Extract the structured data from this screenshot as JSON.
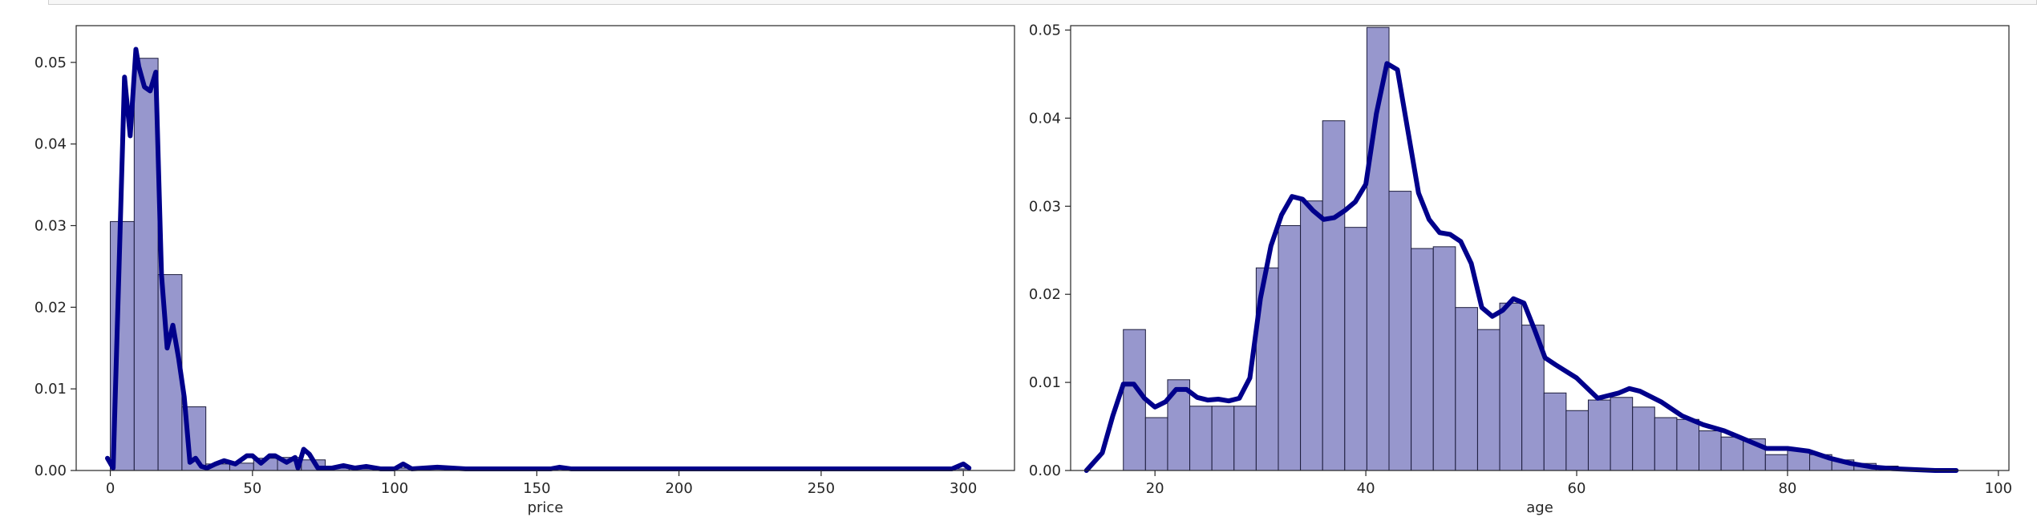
{
  "colors": {
    "bar_fill": "#8c8cc8",
    "bar_edge": "#1c1c3c",
    "kde": "#00008b",
    "axes": "#262626"
  },
  "chart_data": [
    {
      "type": "histogram",
      "xlabel": "price",
      "ylabel": "",
      "xlim": [
        -12,
        318
      ],
      "ylim": [
        0,
        0.0545
      ],
      "x_ticks": [
        0,
        50,
        100,
        150,
        200,
        250,
        300
      ],
      "x_tick_labels": [
        "0",
        "50",
        "100",
        "150",
        "200",
        "250",
        "300"
      ],
      "y_ticks": [
        0,
        0.01,
        0.02,
        0.03,
        0.04,
        0.05
      ],
      "y_tick_labels": [
        "0.00",
        "0.01",
        "0.02",
        "0.03",
        "0.04",
        "0.05"
      ],
      "bins": [
        {
          "x0": 0,
          "x1": 8.4,
          "density": 0.0305
        },
        {
          "x0": 8.4,
          "x1": 16.8,
          "density": 0.0505
        },
        {
          "x0": 16.8,
          "x1": 25.2,
          "density": 0.024
        },
        {
          "x0": 25.2,
          "x1": 33.6,
          "density": 0.0078
        },
        {
          "x0": 33.6,
          "x1": 42.0,
          "density": 0.0008
        },
        {
          "x0": 42.0,
          "x1": 50.4,
          "density": 0.0009
        },
        {
          "x0": 50.4,
          "x1": 58.8,
          "density": 0.0015
        },
        {
          "x0": 58.8,
          "x1": 67.2,
          "density": 0.0016
        },
        {
          "x0": 67.2,
          "x1": 75.6,
          "density": 0.0013
        },
        {
          "x0": 75.6,
          "x1": 84.0,
          "density": 0.0004
        },
        {
          "x0": 84.0,
          "x1": 92.4,
          "density": 0.0002
        },
        {
          "x0": 92.4,
          "x1": 100.8,
          "density": 0.0002
        },
        {
          "x0": 100.8,
          "x1": 109.2,
          "density": 0.0003
        },
        {
          "x0": 109.2,
          "x1": 117.6,
          "density": 0.0002
        },
        {
          "x0": 117.6,
          "x1": 126.0,
          "density": 0.0001
        },
        {
          "x0": 151.2,
          "x1": 159.6,
          "density": 0.0002
        },
        {
          "x0": 294.0,
          "x1": 302.4,
          "density": 0.0002
        }
      ],
      "kde": {
        "x": [
          -1,
          1,
          3,
          5,
          7,
          9,
          10,
          12,
          14,
          16,
          18,
          20,
          22,
          24,
          26,
          28,
          30,
          32,
          34,
          37,
          40,
          44,
          48,
          50,
          53,
          56,
          58,
          62,
          65,
          66,
          68,
          70,
          73,
          78,
          82,
          86,
          90,
          95,
          100,
          103,
          106,
          115,
          125,
          140,
          155,
          158,
          162,
          175,
          200,
          230,
          260,
          280,
          296,
          300,
          302
        ],
        "y": [
          0.0015,
          0.0003,
          0.024,
          0.0482,
          0.041,
          0.0516,
          0.0495,
          0.047,
          0.0465,
          0.0488,
          0.024,
          0.015,
          0.0178,
          0.0138,
          0.009,
          0.001,
          0.0015,
          0.0005,
          0.0003,
          0.0008,
          0.0012,
          0.0008,
          0.0018,
          0.0018,
          0.0009,
          0.0018,
          0.0018,
          0.001,
          0.0016,
          0.0003,
          0.0026,
          0.002,
          0.0003,
          0.0003,
          0.0006,
          0.0003,
          0.0005,
          0.0002,
          0.0002,
          0.0008,
          0.0002,
          0.0004,
          0.0002,
          0.0002,
          0.0002,
          0.0004,
          0.0002,
          0.0002,
          0.0002,
          0.0002,
          0.0002,
          0.0002,
          0.0002,
          0.0008,
          0.0003
        ]
      }
    },
    {
      "type": "histogram",
      "xlabel": "age",
      "ylabel": "",
      "xlim": [
        12,
        101
      ],
      "ylim": [
        0,
        0.0505
      ],
      "x_ticks": [
        20,
        40,
        60,
        80,
        100
      ],
      "x_tick_labels": [
        "20",
        "40",
        "60",
        "80",
        "100"
      ],
      "y_ticks": [
        0,
        0.01,
        0.02,
        0.03,
        0.04,
        0.05
      ],
      "y_tick_labels": [
        "0.00",
        "0.01",
        "0.02",
        "0.03",
        "0.04",
        "0.05"
      ],
      "bins": [
        {
          "x0": 17,
          "x1": 19.1,
          "density": 0.016
        },
        {
          "x0": 19.1,
          "x1": 21.2,
          "density": 0.006
        },
        {
          "x0": 21.2,
          "x1": 23.3,
          "density": 0.0103
        },
        {
          "x0": 23.3,
          "x1": 25.4,
          "density": 0.0073
        },
        {
          "x0": 25.4,
          "x1": 27.5,
          "density": 0.0073
        },
        {
          "x0": 27.5,
          "x1": 29.6,
          "density": 0.0073
        },
        {
          "x0": 29.6,
          "x1": 31.7,
          "density": 0.023
        },
        {
          "x0": 31.7,
          "x1": 33.8,
          "density": 0.0278
        },
        {
          "x0": 33.8,
          "x1": 35.9,
          "density": 0.0306
        },
        {
          "x0": 35.9,
          "x1": 38.0,
          "density": 0.0397
        },
        {
          "x0": 38.0,
          "x1": 40.1,
          "density": 0.0276
        },
        {
          "x0": 40.1,
          "x1": 42.2,
          "density": 0.0503
        },
        {
          "x0": 42.2,
          "x1": 44.3,
          "density": 0.0317
        },
        {
          "x0": 44.3,
          "x1": 46.4,
          "density": 0.0252
        },
        {
          "x0": 46.4,
          "x1": 48.5,
          "density": 0.0254
        },
        {
          "x0": 48.5,
          "x1": 50.6,
          "density": 0.0185
        },
        {
          "x0": 50.6,
          "x1": 52.7,
          "density": 0.016
        },
        {
          "x0": 52.7,
          "x1": 54.8,
          "density": 0.019
        },
        {
          "x0": 54.8,
          "x1": 56.9,
          "density": 0.0165
        },
        {
          "x0": 56.9,
          "x1": 59.0,
          "density": 0.0088
        },
        {
          "x0": 59.0,
          "x1": 61.1,
          "density": 0.0068
        },
        {
          "x0": 61.1,
          "x1": 63.2,
          "density": 0.008
        },
        {
          "x0": 63.2,
          "x1": 65.3,
          "density": 0.0083
        },
        {
          "x0": 65.3,
          "x1": 67.4,
          "density": 0.0072
        },
        {
          "x0": 67.4,
          "x1": 69.5,
          "density": 0.006
        },
        {
          "x0": 69.5,
          "x1": 71.6,
          "density": 0.0058
        },
        {
          "x0": 71.6,
          "x1": 73.7,
          "density": 0.0045
        },
        {
          "x0": 73.7,
          "x1": 75.8,
          "density": 0.0038
        },
        {
          "x0": 75.8,
          "x1": 77.9,
          "density": 0.0036
        },
        {
          "x0": 77.9,
          "x1": 80.0,
          "density": 0.0018
        },
        {
          "x0": 80.0,
          "x1": 82.1,
          "density": 0.0023
        },
        {
          "x0": 82.1,
          "x1": 84.2,
          "density": 0.0018
        },
        {
          "x0": 84.2,
          "x1": 86.3,
          "density": 0.0012
        },
        {
          "x0": 86.3,
          "x1": 88.4,
          "density": 0.0008
        },
        {
          "x0": 88.4,
          "x1": 90.5,
          "density": 0.0005
        },
        {
          "x0": 90.5,
          "x1": 92.6,
          "density": 0.0002
        }
      ],
      "kde": {
        "x": [
          13.5,
          15,
          16,
          17,
          18,
          19,
          20,
          21,
          22,
          23,
          24,
          25,
          26,
          27,
          28,
          29,
          30,
          31,
          32,
          33,
          34,
          35,
          36,
          37,
          38,
          39,
          40,
          41,
          42,
          43,
          44,
          45,
          46,
          47,
          48,
          49,
          50,
          51,
          52,
          53,
          54,
          55,
          56,
          57,
          58,
          60,
          62,
          64,
          65,
          66,
          68,
          70,
          72,
          74,
          76,
          78,
          80,
          82,
          84,
          86,
          88,
          90,
          92,
          94,
          96
        ],
        "y": [
          0,
          0.002,
          0.0062,
          0.0098,
          0.0098,
          0.0082,
          0.0072,
          0.0078,
          0.0092,
          0.0092,
          0.0083,
          0.008,
          0.0081,
          0.0079,
          0.0082,
          0.0105,
          0.0195,
          0.0255,
          0.029,
          0.0311,
          0.0308,
          0.0295,
          0.0285,
          0.0287,
          0.0295,
          0.0305,
          0.0325,
          0.0405,
          0.0462,
          0.0455,
          0.0385,
          0.0315,
          0.0285,
          0.027,
          0.0268,
          0.026,
          0.0235,
          0.0185,
          0.0175,
          0.0182,
          0.0195,
          0.019,
          0.016,
          0.0128,
          0.012,
          0.0105,
          0.0082,
          0.0088,
          0.0093,
          0.009,
          0.0078,
          0.0062,
          0.0052,
          0.0045,
          0.0035,
          0.0025,
          0.0025,
          0.0022,
          0.0014,
          0.0008,
          0.0004,
          0.0002,
          0.0001,
          0,
          0
        ]
      }
    }
  ]
}
